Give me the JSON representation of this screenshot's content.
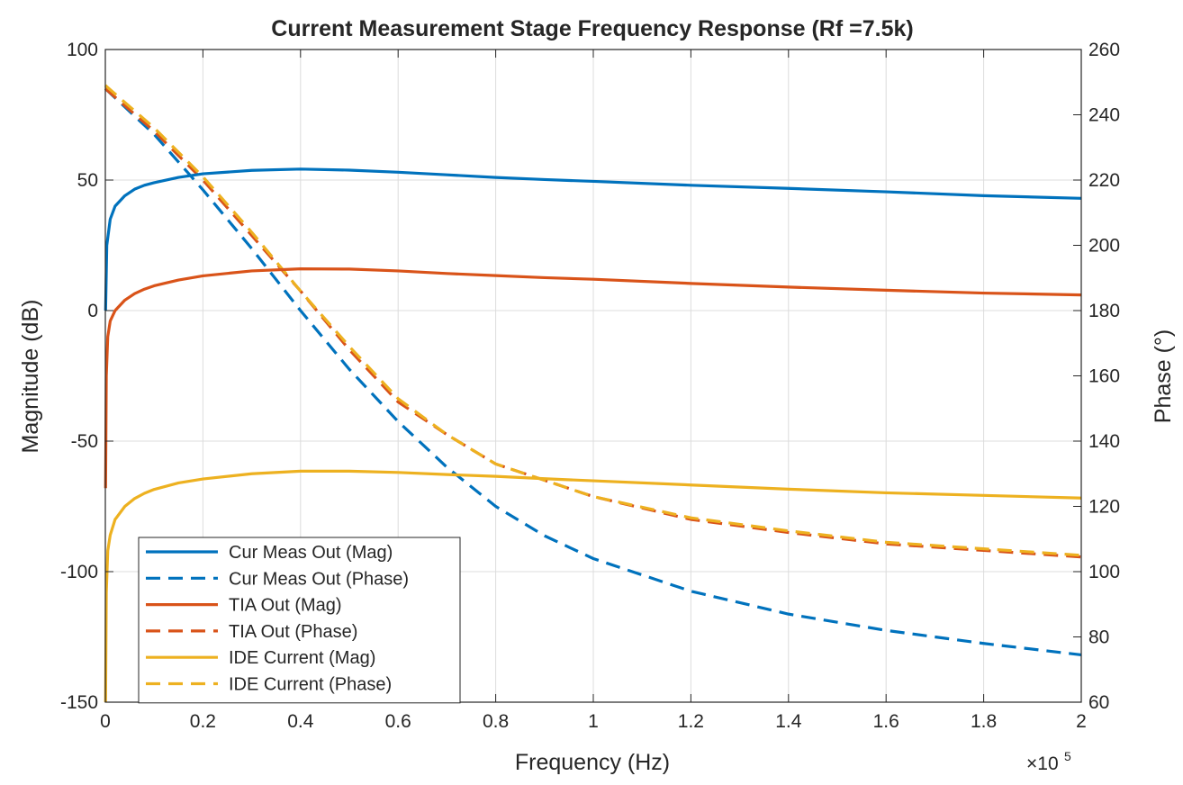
{
  "chart_data": {
    "type": "line",
    "title": "Current Measurement Stage Frequency Response (Rf =7.5k)",
    "xlabel": "Frequency (Hz)",
    "ylabel_left": "Magnitude (dB)",
    "ylabel_right": "Phase (°)",
    "x_exponent_label": "×10",
    "x_exponent_power": "5",
    "xlim": [
      0,
      2
    ],
    "ylim_left": [
      -150,
      100
    ],
    "ylim_right": [
      60,
      260
    ],
    "x_ticks": [
      0,
      0.2,
      0.4,
      0.6,
      0.8,
      1,
      1.2,
      1.4,
      1.6,
      1.8,
      2
    ],
    "x_tick_labels": [
      "0",
      "0.2",
      "0.4",
      "0.6",
      "0.8",
      "1",
      "1.2",
      "1.4",
      "1.6",
      "1.8",
      "2"
    ],
    "y_left_ticks": [
      -150,
      -100,
      -50,
      0,
      50,
      100
    ],
    "y_left_tick_labels": [
      "-150",
      "-100",
      "-50",
      "0",
      "50",
      "100"
    ],
    "y_right_ticks": [
      60,
      80,
      100,
      120,
      140,
      160,
      180,
      200,
      220,
      240,
      260
    ],
    "y_right_tick_labels": [
      "60",
      "80",
      "100",
      "120",
      "140",
      "160",
      "180",
      "200",
      "220",
      "240",
      "260"
    ],
    "grid": true,
    "legend_position": "bottom-left",
    "series": [
      {
        "name": "Cur Meas Out (Mag)",
        "axis": "left",
        "style": "solid",
        "color": "#0072BD",
        "points": [
          [
            0.0005,
            0
          ],
          [
            0.003,
            25
          ],
          [
            0.01,
            35
          ],
          [
            0.02,
            40
          ],
          [
            0.04,
            44
          ],
          [
            0.06,
            46.5
          ],
          [
            0.08,
            48
          ],
          [
            0.1,
            49
          ],
          [
            0.15,
            51
          ],
          [
            0.2,
            52.4
          ],
          [
            0.3,
            53.7
          ],
          [
            0.4,
            54.2
          ],
          [
            0.5,
            53.8
          ],
          [
            0.6,
            53
          ],
          [
            0.7,
            52
          ],
          [
            0.8,
            51
          ],
          [
            0.9,
            50.2
          ],
          [
            1.0,
            49.5
          ],
          [
            1.2,
            48
          ],
          [
            1.4,
            46.8
          ],
          [
            1.6,
            45.5
          ],
          [
            1.8,
            44
          ],
          [
            2.0,
            43
          ]
        ]
      },
      {
        "name": "Cur Meas Out (Phase)",
        "axis": "right",
        "style": "dashed",
        "color": "#0072BD",
        "points": [
          [
            0,
            248
          ],
          [
            0.1,
            234
          ],
          [
            0.2,
            217
          ],
          [
            0.3,
            199
          ],
          [
            0.4,
            180
          ],
          [
            0.5,
            162
          ],
          [
            0.6,
            146
          ],
          [
            0.7,
            132
          ],
          [
            0.8,
            120
          ],
          [
            0.9,
            111
          ],
          [
            1.0,
            104
          ],
          [
            1.2,
            94
          ],
          [
            1.4,
            87
          ],
          [
            1.6,
            82
          ],
          [
            1.8,
            78
          ],
          [
            2.0,
            74.5
          ]
        ]
      },
      {
        "name": "TIA Out (Mag)",
        "axis": "left",
        "style": "solid",
        "color": "#D95319",
        "points": [
          [
            0.0005,
            -68
          ],
          [
            0.002,
            -25
          ],
          [
            0.005,
            -10
          ],
          [
            0.01,
            -4
          ],
          [
            0.02,
            0
          ],
          [
            0.04,
            4
          ],
          [
            0.06,
            6.5
          ],
          [
            0.08,
            8.2
          ],
          [
            0.1,
            9.5
          ],
          [
            0.15,
            11.7
          ],
          [
            0.2,
            13.3
          ],
          [
            0.3,
            15.2
          ],
          [
            0.4,
            16
          ],
          [
            0.5,
            15.9
          ],
          [
            0.6,
            15.2
          ],
          [
            0.7,
            14.2
          ],
          [
            0.8,
            13.4
          ],
          [
            0.9,
            12.6
          ],
          [
            1.0,
            12
          ],
          [
            1.2,
            10.4
          ],
          [
            1.4,
            9
          ],
          [
            1.6,
            7.8
          ],
          [
            1.8,
            6.7
          ],
          [
            2.0,
            6
          ]
        ]
      },
      {
        "name": "TIA Out (Phase)",
        "axis": "right",
        "style": "dashed",
        "color": "#D95319",
        "points": [
          [
            0,
            248
          ],
          [
            0.1,
            235
          ],
          [
            0.2,
            220
          ],
          [
            0.3,
            203
          ],
          [
            0.4,
            186
          ],
          [
            0.5,
            168
          ],
          [
            0.6,
            152
          ],
          [
            0.7,
            142
          ],
          [
            0.8,
            133
          ],
          [
            0.9,
            128
          ],
          [
            1.0,
            123
          ],
          [
            1.2,
            116
          ],
          [
            1.4,
            112
          ],
          [
            1.6,
            108.5
          ],
          [
            1.8,
            106.5
          ],
          [
            2.0,
            104.5
          ]
        ]
      },
      {
        "name": "IDE Current (Mag)",
        "axis": "left",
        "style": "solid",
        "color": "#EDB120",
        "points": [
          [
            0.0005,
            -150
          ],
          [
            0.002,
            -108
          ],
          [
            0.005,
            -92
          ],
          [
            0.01,
            -86
          ],
          [
            0.02,
            -80
          ],
          [
            0.04,
            -75
          ],
          [
            0.06,
            -72
          ],
          [
            0.08,
            -70
          ],
          [
            0.1,
            -68.5
          ],
          [
            0.15,
            -66
          ],
          [
            0.2,
            -64.5
          ],
          [
            0.3,
            -62.5
          ],
          [
            0.4,
            -61.5
          ],
          [
            0.5,
            -61.5
          ],
          [
            0.6,
            -62
          ],
          [
            0.7,
            -62.8
          ],
          [
            0.8,
            -63.5
          ],
          [
            0.9,
            -64.4
          ],
          [
            1.0,
            -65.2
          ],
          [
            1.2,
            -66.8
          ],
          [
            1.4,
            -68.4
          ],
          [
            1.6,
            -69.8
          ],
          [
            1.8,
            -70.8
          ],
          [
            2.0,
            -71.8
          ]
        ]
      },
      {
        "name": "IDE Current (Phase)",
        "axis": "right",
        "style": "dashed",
        "color": "#EDB120",
        "points": [
          [
            0,
            249
          ],
          [
            0.1,
            236
          ],
          [
            0.2,
            221
          ],
          [
            0.3,
            204
          ],
          [
            0.4,
            186
          ],
          [
            0.5,
            169
          ],
          [
            0.6,
            153
          ],
          [
            0.7,
            142
          ],
          [
            0.8,
            133
          ],
          [
            0.9,
            128
          ],
          [
            1.0,
            123
          ],
          [
            1.2,
            116.5
          ],
          [
            1.4,
            112.5
          ],
          [
            1.6,
            109
          ],
          [
            1.8,
            107
          ],
          [
            2.0,
            105
          ]
        ]
      }
    ]
  }
}
